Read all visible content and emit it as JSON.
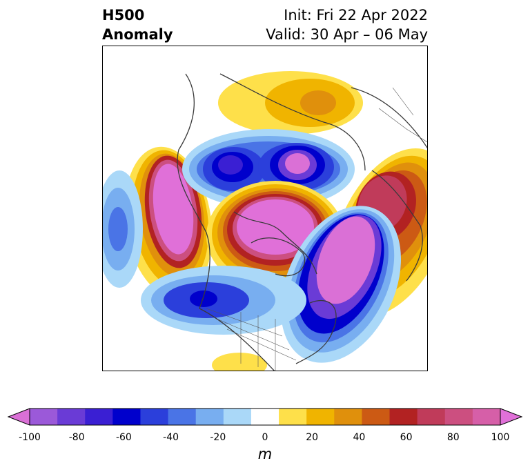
{
  "title": {
    "left_line1": "H500",
    "left_line2": "Anomaly",
    "init": "Init: Fri 22 Apr 2022",
    "valid": "Valid: 30 Apr – 06 May"
  },
  "colorbar": {
    "units": "m",
    "ticks": [
      "-100",
      "-80",
      "-60",
      "-40",
      "-20",
      "0",
      "20",
      "40",
      "60",
      "80",
      "100"
    ],
    "colors": [
      "#da70d6",
      "#9b59d9",
      "#6a3bd6",
      "#3a1fd3",
      "#0000cc",
      "#2b3fdb",
      "#4a74e6",
      "#78aef0",
      "#aad8f8",
      "#ffffff",
      "#fee04a",
      "#f0b400",
      "#e0900c",
      "#cc5a14",
      "#b22222",
      "#c03b5a",
      "#cc4f80",
      "#d65fa8",
      "#e070d8"
    ]
  }
}
